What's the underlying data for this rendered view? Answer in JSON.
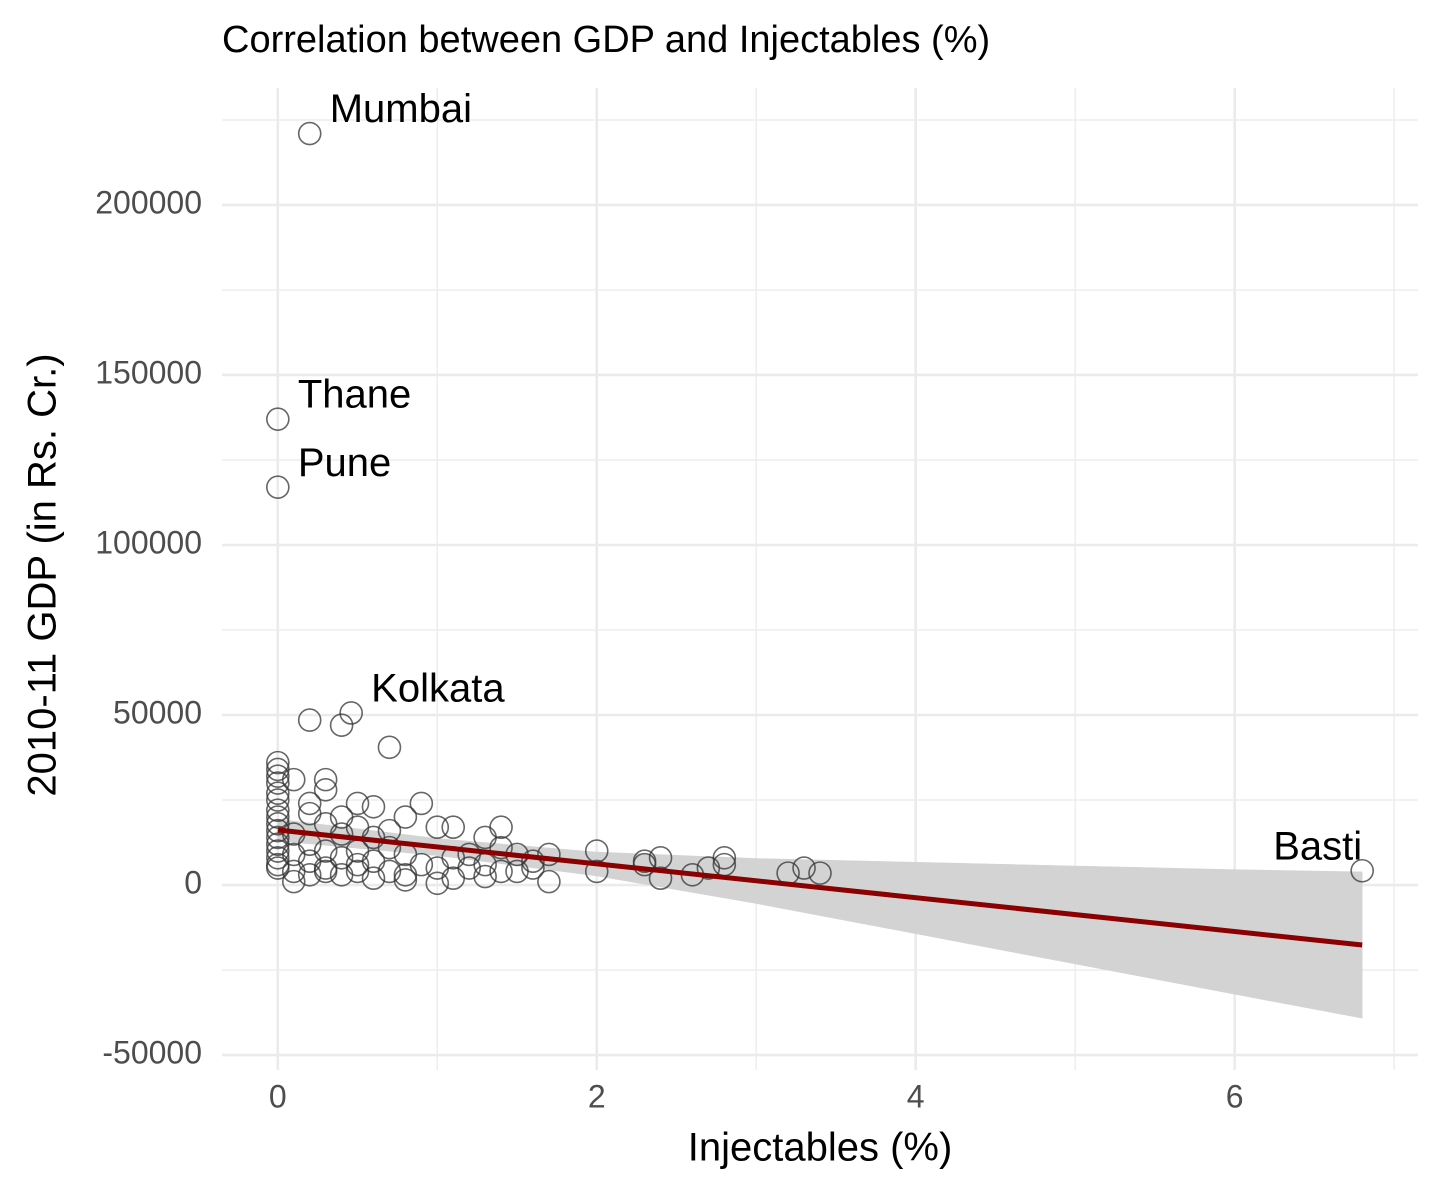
{
  "chart_data": {
    "type": "scatter",
    "title": "Correlation between GDP and Injectables (%)",
    "x_label": "Injectables (%)",
    "y_label": "2010-11 GDP (in Rs. Cr.)",
    "xlim": [
      -0.35,
      7.15
    ],
    "ylim": [
      -54400,
      234400
    ],
    "xticks": [
      0,
      2,
      4,
      6
    ],
    "yticks": [
      -50000,
      0,
      50000,
      100000,
      150000,
      200000
    ],
    "x_minor_grid": [
      1,
      3,
      5,
      7
    ],
    "y_minor_grid": [
      -25000,
      25000,
      75000,
      125000,
      175000,
      225000
    ],
    "grid": true,
    "series": [
      {
        "color": "#333333",
        "x": [
          0,
          0,
          0,
          0,
          0,
          0,
          0,
          0,
          0,
          0,
          0,
          0,
          0,
          0,
          0,
          0,
          0,
          0,
          0.1,
          0.1,
          0.1,
          0.1,
          0.1,
          0.2,
          0.2,
          0.2,
          0.2,
          0.2,
          0.2,
          0.2,
          0.3,
          0.3,
          0.3,
          0.3,
          0.3,
          0.3,
          0.4,
          0.4,
          0.4,
          0.4,
          0.4,
          0.46,
          0.5,
          0.5,
          0.5,
          0.5,
          0.5,
          0.6,
          0.6,
          0.6,
          0.6,
          0.7,
          0.7,
          0.7,
          0.7,
          0.8,
          0.8,
          0.8,
          0.8,
          0.9,
          0.9,
          1.0,
          1.0,
          1.0,
          1.1,
          1.1,
          1.1,
          1.2,
          1.2,
          1.3,
          1.3,
          1.3,
          1.4,
          1.4,
          1.4,
          1.5,
          1.5,
          1.6,
          1.6,
          1.7,
          1.7,
          2.0,
          2.0,
          2.3,
          2.3,
          2.4,
          2.4,
          2.6,
          2.7,
          2.8,
          2.8,
          3.2,
          3.3,
          3.4,
          6.8
        ],
        "values": [
          36000,
          34000,
          32000,
          30000,
          27000,
          25000,
          22000,
          20000,
          18000,
          16000,
          14000,
          12000,
          10000,
          8000,
          6000,
          5000,
          137000,
          117000,
          31000,
          15000,
          9000,
          4000,
          1000,
          221000,
          48500,
          24000,
          21000,
          12000,
          7000,
          3000,
          31000,
          28000,
          18000,
          10000,
          5000,
          4000,
          47000,
          20000,
          15000,
          8000,
          3000,
          50600,
          24000,
          17000,
          10000,
          6000,
          4000,
          23000,
          14000,
          7000,
          2000,
          40500,
          16000,
          11000,
          4000,
          20000,
          9000,
          3000,
          1500,
          24000,
          6000,
          17000,
          5000,
          500,
          17000,
          8000,
          2000,
          9000,
          5000,
          14000,
          6000,
          2500,
          17000,
          11000,
          4000,
          9000,
          4000,
          7000,
          5000,
          9000,
          1000,
          10000,
          4000,
          7000,
          6000,
          8000,
          2000,
          3000,
          5000,
          8000,
          6000,
          3500,
          5000,
          3500,
          4200
        ],
        "labels": [
          null,
          null,
          null,
          null,
          null,
          null,
          null,
          null,
          null,
          null,
          null,
          null,
          null,
          null,
          null,
          null,
          "Thane",
          "Pune",
          null,
          null,
          null,
          null,
          null,
          "Mumbai",
          null,
          null,
          null,
          null,
          null,
          null,
          null,
          null,
          null,
          null,
          null,
          null,
          null,
          null,
          null,
          null,
          null,
          "Kolkata",
          null,
          null,
          null,
          null,
          null,
          null,
          null,
          null,
          null,
          null,
          null,
          null,
          null,
          null,
          null,
          null,
          null,
          null,
          null,
          null,
          null,
          null,
          null,
          null,
          null,
          null,
          null,
          null,
          null,
          null,
          null,
          null,
          null,
          null,
          null,
          null,
          null,
          null,
          null,
          null,
          null,
          null,
          null,
          null,
          null,
          null,
          null,
          null,
          null,
          null,
          null,
          null,
          "Basti"
        ]
      }
    ],
    "fit": {
      "color": "#8b0000",
      "x": [
        0,
        6.8
      ],
      "values": [
        16176,
        -17647
      ]
    },
    "band": {
      "color": "#d3d3d3",
      "x": [
        0,
        1,
        2,
        3,
        4,
        5,
        6,
        6.8
      ],
      "upper": [
        19376,
        13680,
        9684,
        7788,
        6692,
        5596,
        4500,
        3853
      ],
      "lower": [
        12976,
        8680,
        2684,
        -5412,
        -14308,
        -23204,
        -32100,
        -39147
      ]
    }
  }
}
